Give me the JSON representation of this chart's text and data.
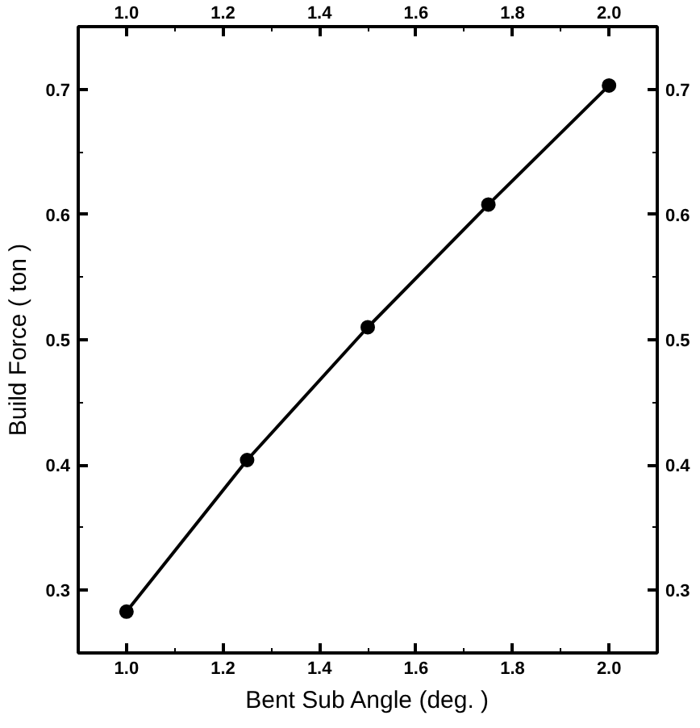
{
  "chart_data": {
    "type": "line",
    "xlabel": "Bent Sub Angle (deg. )",
    "ylabel": "Build Force ( ton )",
    "x": [
      1.0,
      1.25,
      1.5,
      1.75,
      2.0
    ],
    "series": [
      {
        "color": "#000000",
        "values": [
          0.283,
          0.404,
          0.51,
          0.608,
          0.703
        ]
      }
    ],
    "marker": "circle",
    "line_style": "solid",
    "grid": false,
    "xlim": [
      0.9,
      2.1
    ],
    "xticks": [
      {
        "value": 1,
        "label": "1.0"
      },
      {
        "value": 1.1,
        "label": null
      },
      1.2,
      {
        "value": 1.3,
        "label": null
      },
      1.4,
      {
        "value": 1.5,
        "label": null
      },
      1.6,
      {
        "value": 1.7,
        "label": null
      },
      1.8,
      {
        "value": 1.9,
        "label": null
      },
      {
        "value": 2,
        "label": "2.0"
      }
    ],
    "x2lim": [
      0.9,
      2.1
    ],
    "x2ticks": [
      {
        "value": 1,
        "label": "1.0"
      },
      {
        "value": 1.1,
        "label": null
      },
      1.2,
      {
        "value": 1.3,
        "label": null
      },
      1.4,
      {
        "value": 1.5,
        "label": null
      },
      1.6,
      {
        "value": 1.7,
        "label": null
      },
      1.8,
      {
        "value": 1.9,
        "label": null
      },
      {
        "value": 2,
        "label": "2.0"
      }
    ],
    "ylim": [
      0.25,
      0.75
    ],
    "yticks": [
      0.3,
      {
        "value": 0.35,
        "label": null
      },
      0.4,
      {
        "value": 0.45,
        "label": null
      },
      0.5,
      {
        "value": 0.55,
        "label": null
      },
      0.6,
      {
        "value": 0.65,
        "label": null
      },
      0.7
    ],
    "y2lim": [
      0.25,
      0.75
    ],
    "y2ticks": [
      0.3,
      {
        "value": 0.35,
        "label": null
      },
      0.4,
      {
        "value": 0.45,
        "label": null
      },
      0.5,
      {
        "value": 0.55,
        "label": null
      },
      0.6,
      {
        "value": 0.65,
        "label": null
      },
      0.7
    ]
  }
}
